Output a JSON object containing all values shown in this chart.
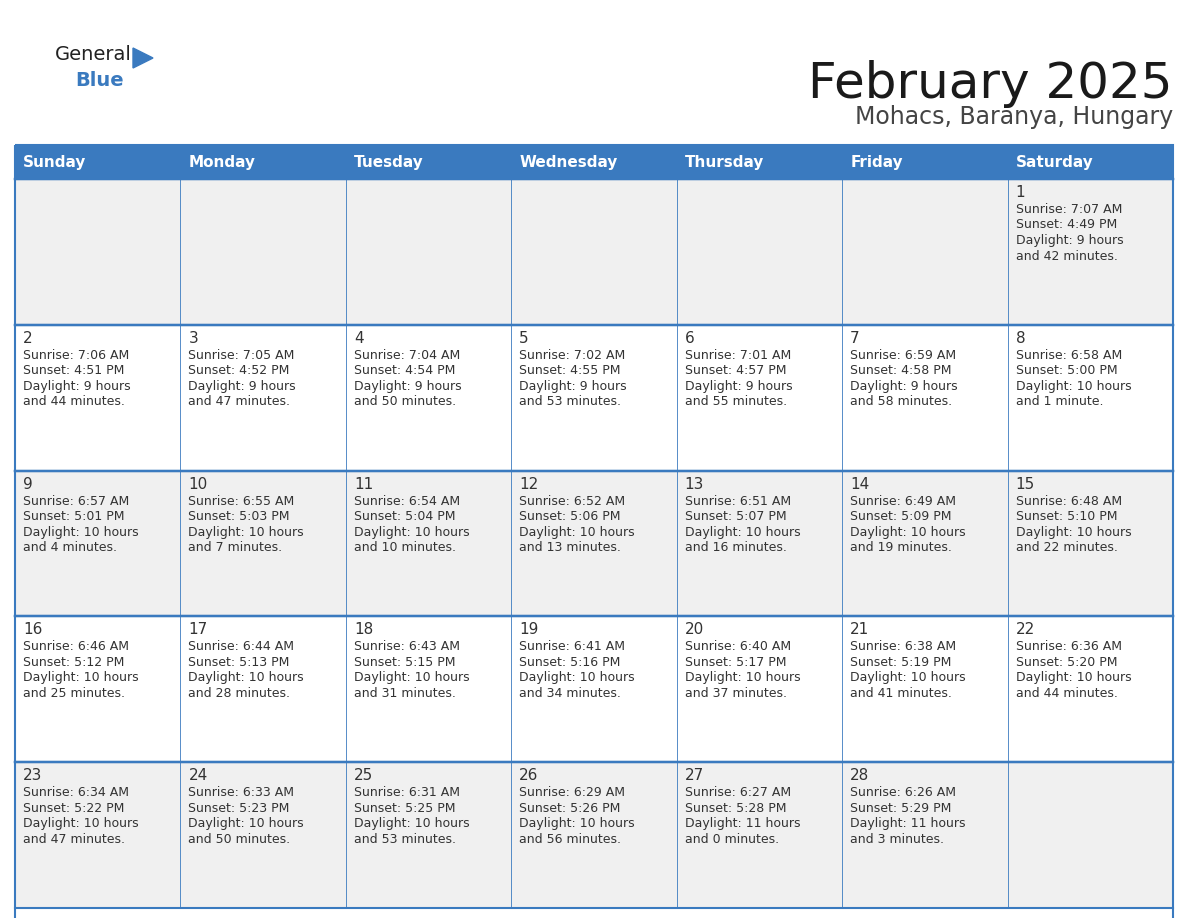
{
  "title": "February 2025",
  "subtitle": "Mohacs, Baranya, Hungary",
  "header_color": "#3a7abf",
  "header_text_color": "#ffffff",
  "border_color": "#3a7abf",
  "cell_bg_odd": "#f0f0f0",
  "cell_bg_even": "#ffffff",
  "day_number_color": "#333333",
  "text_color": "#333333",
  "days_of_week": [
    "Sunday",
    "Monday",
    "Tuesday",
    "Wednesday",
    "Thursday",
    "Friday",
    "Saturday"
  ],
  "calendar_data": [
    [
      null,
      null,
      null,
      null,
      null,
      null,
      {
        "day": "1",
        "sunrise": "7:07 AM",
        "sunset": "4:49 PM",
        "daylight1": "9 hours",
        "daylight2": "and 42 minutes."
      }
    ],
    [
      {
        "day": "2",
        "sunrise": "7:06 AM",
        "sunset": "4:51 PM",
        "daylight1": "9 hours",
        "daylight2": "and 44 minutes."
      },
      {
        "day": "3",
        "sunrise": "7:05 AM",
        "sunset": "4:52 PM",
        "daylight1": "9 hours",
        "daylight2": "and 47 minutes."
      },
      {
        "day": "4",
        "sunrise": "7:04 AM",
        "sunset": "4:54 PM",
        "daylight1": "9 hours",
        "daylight2": "and 50 minutes."
      },
      {
        "day": "5",
        "sunrise": "7:02 AM",
        "sunset": "4:55 PM",
        "daylight1": "9 hours",
        "daylight2": "and 53 minutes."
      },
      {
        "day": "6",
        "sunrise": "7:01 AM",
        "sunset": "4:57 PM",
        "daylight1": "9 hours",
        "daylight2": "and 55 minutes."
      },
      {
        "day": "7",
        "sunrise": "6:59 AM",
        "sunset": "4:58 PM",
        "daylight1": "9 hours",
        "daylight2": "and 58 minutes."
      },
      {
        "day": "8",
        "sunrise": "6:58 AM",
        "sunset": "5:00 PM",
        "daylight1": "10 hours",
        "daylight2": "and 1 minute."
      }
    ],
    [
      {
        "day": "9",
        "sunrise": "6:57 AM",
        "sunset": "5:01 PM",
        "daylight1": "10 hours",
        "daylight2": "and 4 minutes."
      },
      {
        "day": "10",
        "sunrise": "6:55 AM",
        "sunset": "5:03 PM",
        "daylight1": "10 hours",
        "daylight2": "and 7 minutes."
      },
      {
        "day": "11",
        "sunrise": "6:54 AM",
        "sunset": "5:04 PM",
        "daylight1": "10 hours",
        "daylight2": "and 10 minutes."
      },
      {
        "day": "12",
        "sunrise": "6:52 AM",
        "sunset": "5:06 PM",
        "daylight1": "10 hours",
        "daylight2": "and 13 minutes."
      },
      {
        "day": "13",
        "sunrise": "6:51 AM",
        "sunset": "5:07 PM",
        "daylight1": "10 hours",
        "daylight2": "and 16 minutes."
      },
      {
        "day": "14",
        "sunrise": "6:49 AM",
        "sunset": "5:09 PM",
        "daylight1": "10 hours",
        "daylight2": "and 19 minutes."
      },
      {
        "day": "15",
        "sunrise": "6:48 AM",
        "sunset": "5:10 PM",
        "daylight1": "10 hours",
        "daylight2": "and 22 minutes."
      }
    ],
    [
      {
        "day": "16",
        "sunrise": "6:46 AM",
        "sunset": "5:12 PM",
        "daylight1": "10 hours",
        "daylight2": "and 25 minutes."
      },
      {
        "day": "17",
        "sunrise": "6:44 AM",
        "sunset": "5:13 PM",
        "daylight1": "10 hours",
        "daylight2": "and 28 minutes."
      },
      {
        "day": "18",
        "sunrise": "6:43 AM",
        "sunset": "5:15 PM",
        "daylight1": "10 hours",
        "daylight2": "and 31 minutes."
      },
      {
        "day": "19",
        "sunrise": "6:41 AM",
        "sunset": "5:16 PM",
        "daylight1": "10 hours",
        "daylight2": "and 34 minutes."
      },
      {
        "day": "20",
        "sunrise": "6:40 AM",
        "sunset": "5:17 PM",
        "daylight1": "10 hours",
        "daylight2": "and 37 minutes."
      },
      {
        "day": "21",
        "sunrise": "6:38 AM",
        "sunset": "5:19 PM",
        "daylight1": "10 hours",
        "daylight2": "and 41 minutes."
      },
      {
        "day": "22",
        "sunrise": "6:36 AM",
        "sunset": "5:20 PM",
        "daylight1": "10 hours",
        "daylight2": "and 44 minutes."
      }
    ],
    [
      {
        "day": "23",
        "sunrise": "6:34 AM",
        "sunset": "5:22 PM",
        "daylight1": "10 hours",
        "daylight2": "and 47 minutes."
      },
      {
        "day": "24",
        "sunrise": "6:33 AM",
        "sunset": "5:23 PM",
        "daylight1": "10 hours",
        "daylight2": "and 50 minutes."
      },
      {
        "day": "25",
        "sunrise": "6:31 AM",
        "sunset": "5:25 PM",
        "daylight1": "10 hours",
        "daylight2": "and 53 minutes."
      },
      {
        "day": "26",
        "sunrise": "6:29 AM",
        "sunset": "5:26 PM",
        "daylight1": "10 hours",
        "daylight2": "and 56 minutes."
      },
      {
        "day": "27",
        "sunrise": "6:27 AM",
        "sunset": "5:28 PM",
        "daylight1": "11 hours",
        "daylight2": "and 0 minutes."
      },
      {
        "day": "28",
        "sunrise": "6:26 AM",
        "sunset": "5:29 PM",
        "daylight1": "11 hours",
        "daylight2": "and 3 minutes."
      },
      null
    ]
  ],
  "logo_general_color": "#222222",
  "logo_blue_color": "#3a7abf",
  "logo_triangle_color": "#3a7abf"
}
